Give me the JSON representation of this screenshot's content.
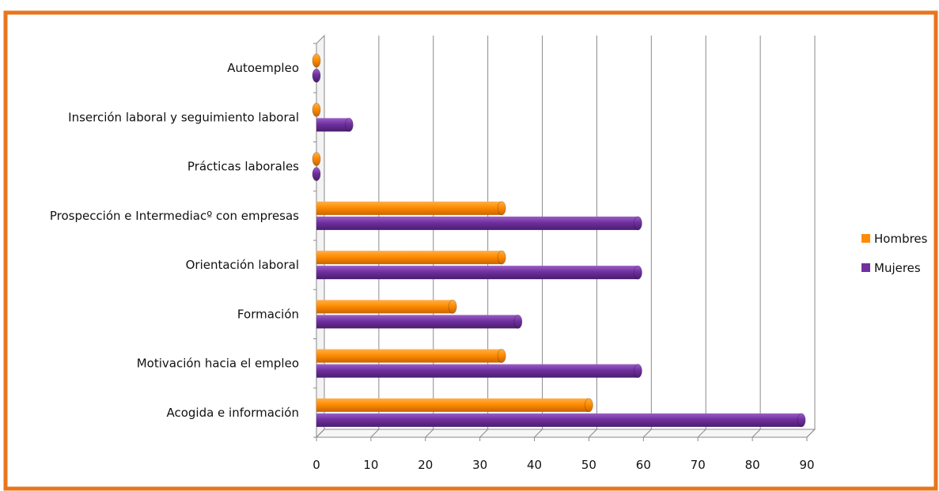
{
  "chart_data": {
    "type": "bar",
    "orientation": "horizontal",
    "categories": [
      "Acogida e información",
      "Motivación hacia el empleo",
      "Formación",
      "Orientación laboral",
      "Prospección e Intermediacº con empresas",
      "Prácticas laborales",
      "Inserción laboral y seguimiento laboral",
      "Autoempleo"
    ],
    "series": [
      {
        "name": "Hombres",
        "color": "#ff8c00",
        "values": [
          50,
          34,
          25,
          34,
          34,
          0,
          0,
          0
        ]
      },
      {
        "name": "Mujeres",
        "color": "#7030a0",
        "values": [
          89,
          59,
          37,
          59,
          59,
          0,
          6,
          0
        ]
      }
    ],
    "xlim": [
      0,
      90
    ],
    "xticks": [
      "0",
      "10",
      "20",
      "30",
      "40",
      "50",
      "60",
      "70",
      "80",
      "90"
    ],
    "grid": true,
    "legend_position": "right",
    "frame_color": "#e8761e"
  }
}
